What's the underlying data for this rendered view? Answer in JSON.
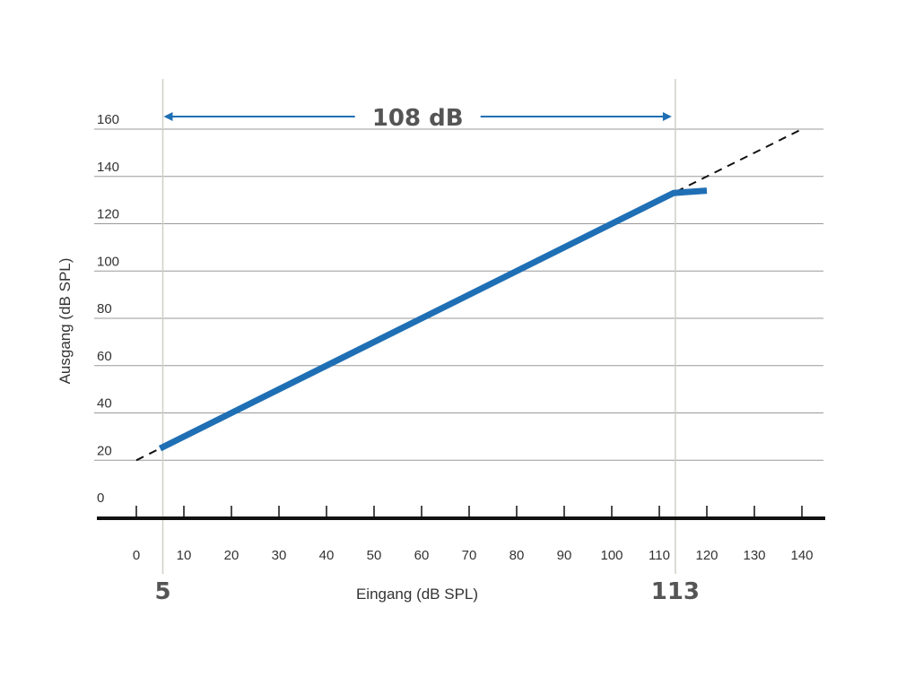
{
  "chart_data": {
    "type": "line",
    "title": "",
    "xlabel": "Eingang (dB SPL)",
    "ylabel": "Ausgang (dB SPL)",
    "xlim": [
      0,
      140
    ],
    "ylim": [
      0,
      160
    ],
    "x_ticks": [
      "0",
      "10",
      "20",
      "30",
      "40",
      "50",
      "60",
      "70",
      "80",
      "90",
      "100",
      "110",
      "120",
      "130",
      "140"
    ],
    "y_ticks": [
      "0",
      "20",
      "40",
      "60",
      "80",
      "100",
      "120",
      "140",
      "160"
    ],
    "grid": "horizontal",
    "series": [
      {
        "style": "solid",
        "color": "#1f6fb5",
        "points": [
          [
            5,
            25
          ],
          [
            113,
            133
          ],
          [
            120,
            134
          ]
        ]
      },
      {
        "style": "dashed",
        "color": "#111111",
        "points": [
          [
            0,
            20
          ],
          [
            140,
            160
          ]
        ]
      }
    ],
    "annotations": {
      "range_label": "108 dB",
      "range_start": 5,
      "range_end": 113,
      "range_start_label": "5",
      "range_end_label": "113",
      "arrow_color": "#1f6fb5"
    }
  }
}
